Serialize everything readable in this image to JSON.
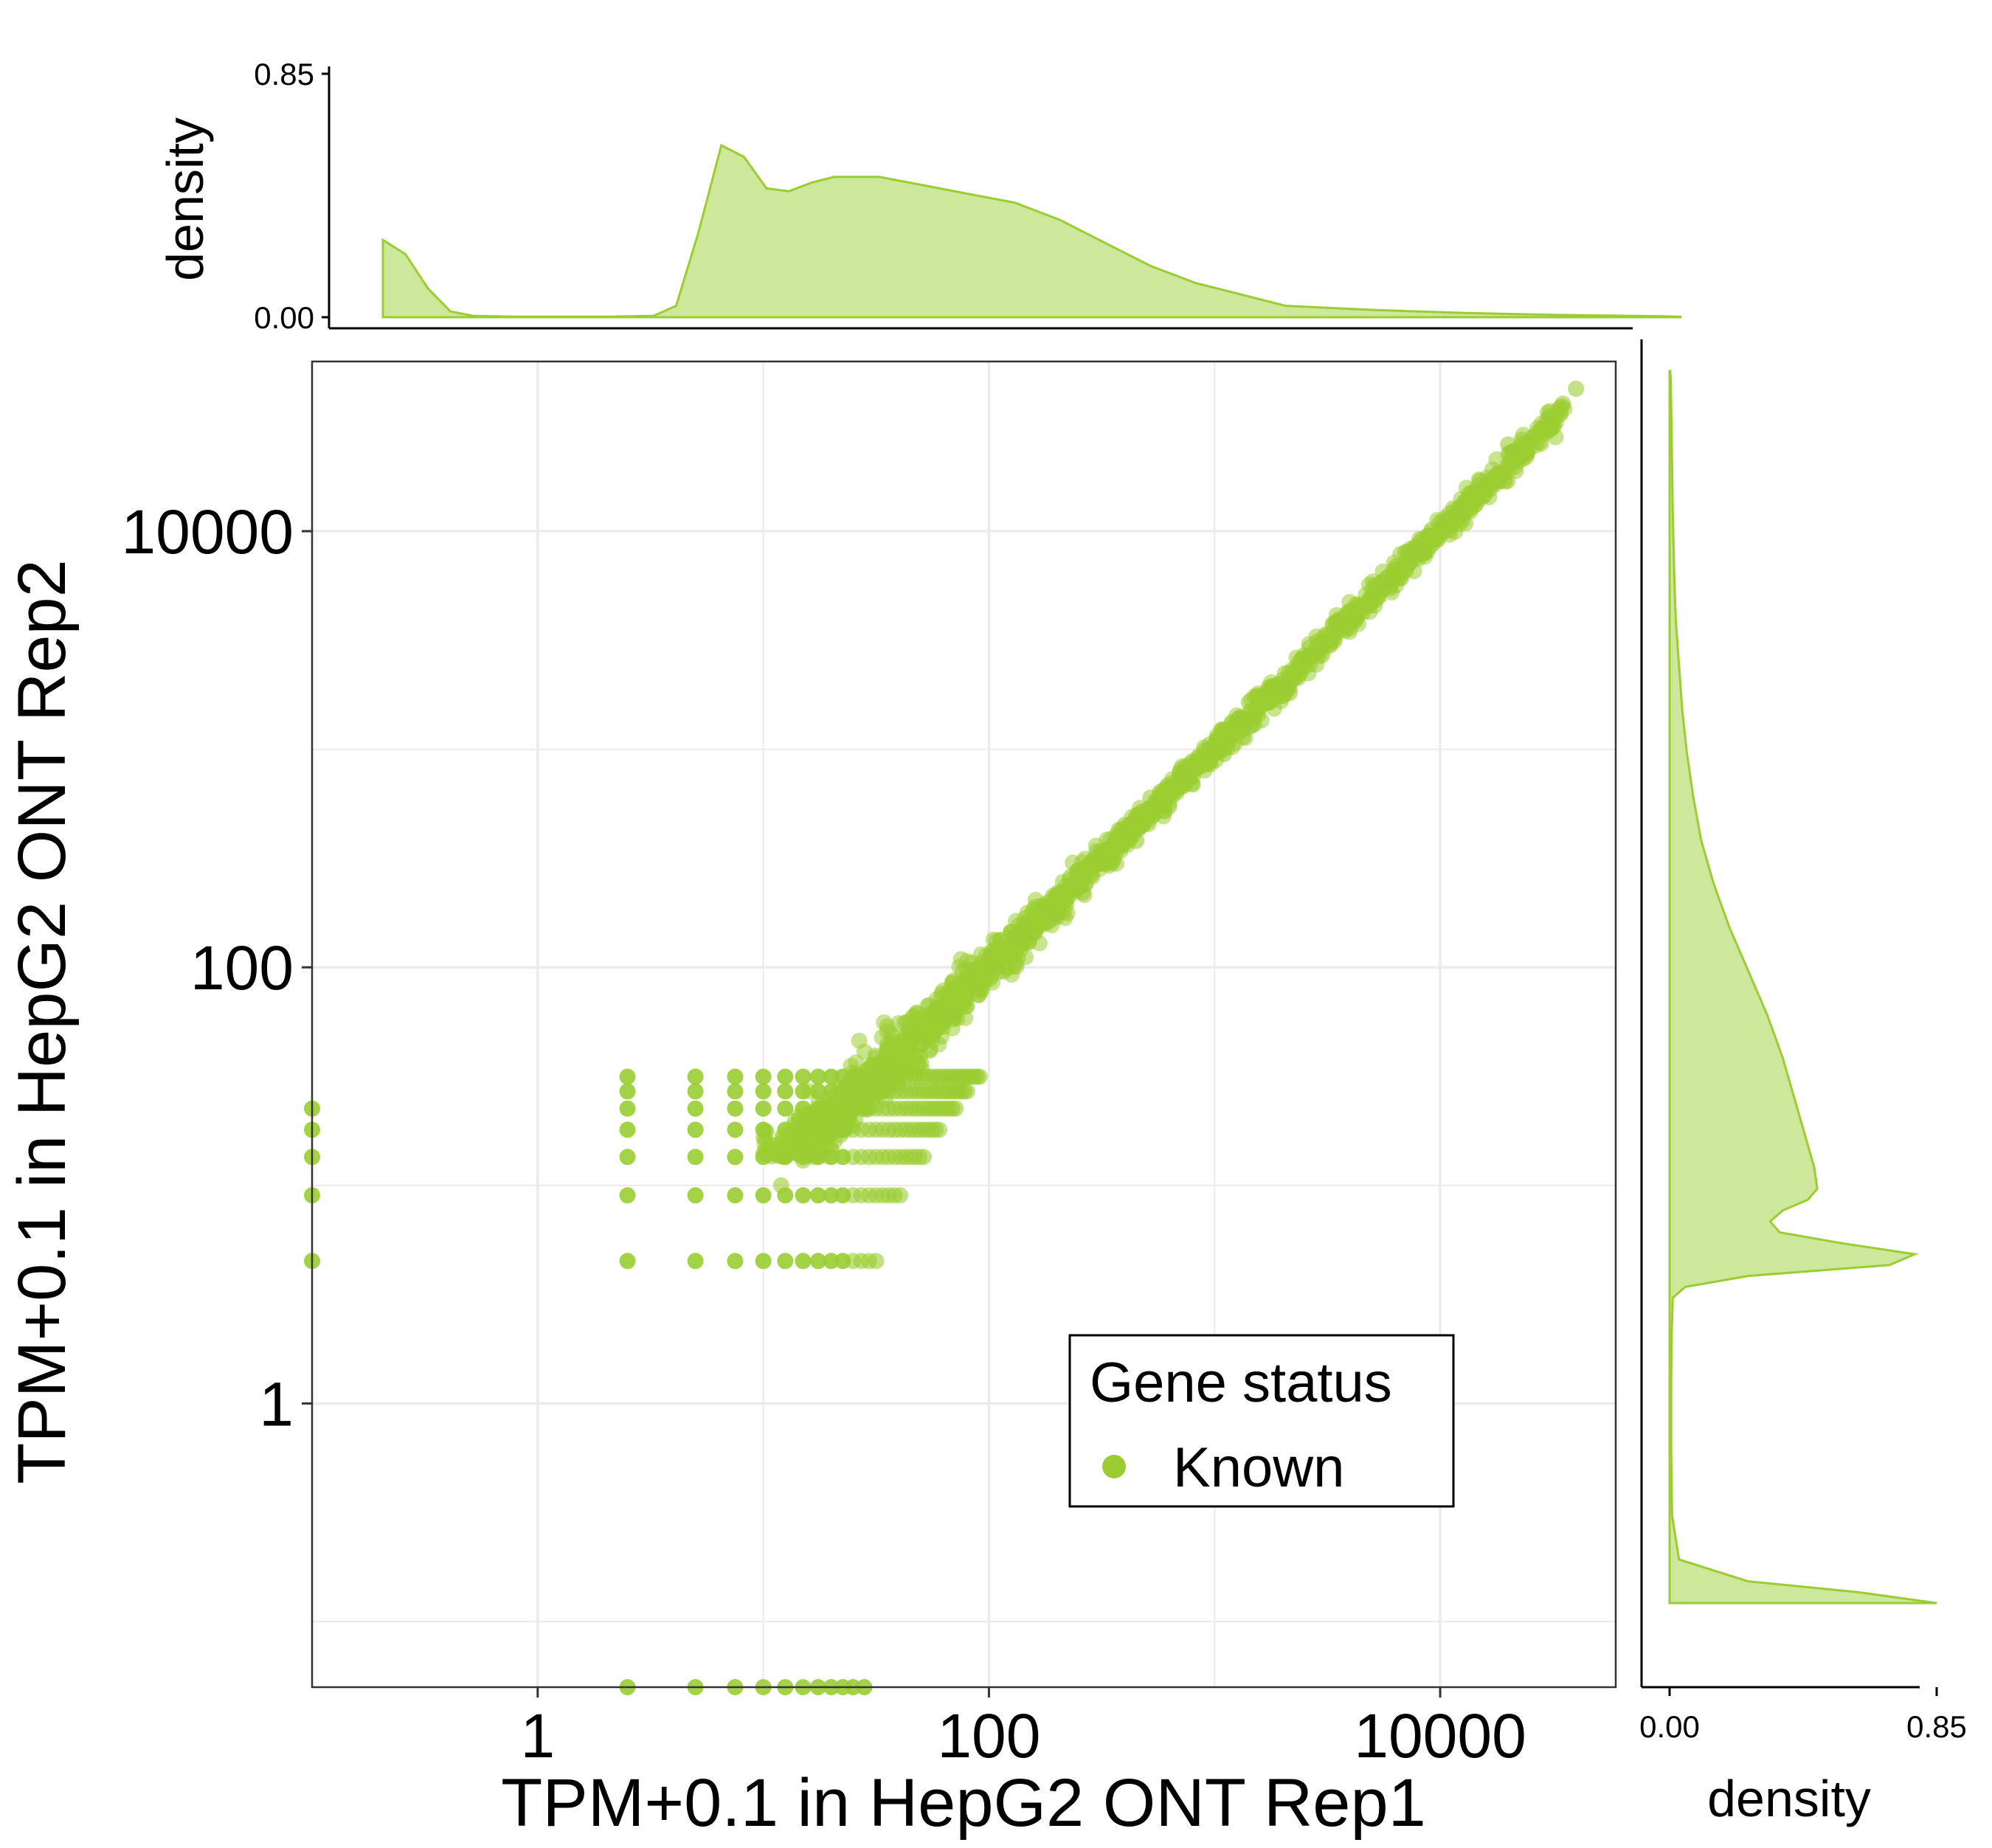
{
  "chart_data": [
    {
      "id": "main",
      "type": "scatter",
      "xlabel": "TPM+0.1 in HepG2 ONT Rep1",
      "ylabel": "TPM+0.1 in HepG2 ONT Rep2",
      "scale": "log10",
      "xlim": [
        0.1,
        60000
      ],
      "ylim": [
        0.05,
        60000
      ],
      "x_ticks": [
        {
          "value": 1,
          "label": "1"
        },
        {
          "value": 100,
          "label": "100"
        },
        {
          "value": 10000,
          "label": "10000"
        }
      ],
      "y_ticks": [
        {
          "value": 1,
          "label": "1"
        },
        {
          "value": 100,
          "label": "100"
        },
        {
          "value": 10000,
          "label": "10000"
        }
      ],
      "minor_gridlines": [
        0.1,
        10,
        1000
      ],
      "grid": true,
      "point_color": "#9ACD32",
      "legend": {
        "title": "Gene status",
        "entries": [
          "Known"
        ],
        "position": "bottom-right"
      },
      "series": [
        {
          "name": "Known",
          "note_points": "dense cloud along the diagonal from ~10 to ~30000 TPM; discrete stripes at low counts"
        }
      ],
      "stripe_levels": [
        0.1,
        4.5,
        9.0,
        13.5,
        18.0,
        22.5,
        27.0,
        31.5
      ],
      "stripe_x_start": [
        2.5,
        5.0,
        7.5,
        10.0,
        12.5,
        15.0,
        17.5,
        20.0,
        22.5
      ],
      "diag_points": [
        [
          12,
          10
        ],
        [
          15,
          13
        ],
        [
          18,
          17
        ],
        [
          22,
          19
        ],
        [
          25,
          28
        ],
        [
          30,
          26
        ],
        [
          35,
          38
        ],
        [
          40,
          33
        ],
        [
          45,
          50
        ],
        [
          50,
          44
        ],
        [
          60,
          65
        ],
        [
          70,
          58
        ],
        [
          80,
          90
        ],
        [
          90,
          75
        ],
        [
          100,
          110
        ],
        [
          110,
          95
        ],
        [
          130,
          140
        ],
        [
          150,
          130
        ],
        [
          170,
          190
        ],
        [
          200,
          170
        ],
        [
          230,
          260
        ],
        [
          260,
          220
        ],
        [
          300,
          340
        ],
        [
          350,
          300
        ],
        [
          400,
          450
        ],
        [
          450,
          380
        ],
        [
          520,
          600
        ],
        [
          600,
          520
        ],
        [
          700,
          780
        ],
        [
          800,
          690
        ],
        [
          950,
          1050
        ],
        [
          1100,
          950
        ],
        [
          1300,
          1400
        ],
        [
          1500,
          1300
        ],
        [
          1800,
          1950
        ],
        [
          2100,
          1900
        ],
        [
          2500,
          2700
        ],
        [
          3000,
          2700
        ],
        [
          3500,
          3800
        ],
        [
          4200,
          3900
        ],
        [
          5000,
          5400
        ],
        [
          6000,
          5600
        ],
        [
          7000,
          8000
        ],
        [
          8500,
          8000
        ],
        [
          10000,
          11000
        ],
        [
          12000,
          12500
        ],
        [
          15000,
          17000
        ],
        [
          20000,
          25000
        ],
        [
          30000,
          35000
        ],
        [
          40000,
          45000
        ]
      ]
    },
    {
      "id": "top-density",
      "type": "area",
      "ylabel": "density",
      "ylim": [
        0,
        0.85
      ],
      "y_ticks": [
        {
          "value": 0,
          "label": "0.00"
        },
        {
          "value": 0.85,
          "label": "0.85"
        }
      ],
      "x_log10": [
        -1.0,
        -0.9,
        -0.8,
        -0.7,
        -0.6,
        -0.5,
        -0.4,
        -0.2,
        0.0,
        0.2,
        0.3,
        0.4,
        0.5,
        0.6,
        0.7,
        0.8,
        0.9,
        1.0,
        1.2,
        1.4,
        1.6,
        1.8,
        2.0,
        2.2,
        2.4,
        2.6,
        2.8,
        3.0,
        3.4,
        3.8,
        4.2,
        4.6,
        4.75
      ],
      "values": [
        0.27,
        0.22,
        0.1,
        0.02,
        0.005,
        0.003,
        0.002,
        0.002,
        0.002,
        0.005,
        0.04,
        0.3,
        0.6,
        0.56,
        0.45,
        0.44,
        0.47,
        0.49,
        0.49,
        0.46,
        0.43,
        0.4,
        0.34,
        0.26,
        0.18,
        0.12,
        0.08,
        0.04,
        0.025,
        0.015,
        0.008,
        0.004,
        0.002
      ],
      "fill": "#CDE89A",
      "stroke": "#9ACD32"
    },
    {
      "id": "right-density",
      "type": "area",
      "xlabel": "density",
      "xlim": [
        0,
        0.85
      ],
      "x_ticks": [
        {
          "value": 0,
          "label": "0.00"
        },
        {
          "value": 0.85,
          "label": "0.85"
        }
      ],
      "y_log10": [
        -1.0,
        -0.95,
        -0.9,
        -0.8,
        -0.6,
        -0.3,
        0.0,
        0.2,
        0.4,
        0.45,
        0.5,
        0.55,
        0.6,
        0.65,
        0.7,
        0.75,
        0.8,
        0.85,
        0.9,
        1.0,
        1.1,
        1.2,
        1.3,
        1.5,
        1.7,
        1.9,
        2.1,
        2.3,
        2.5,
        2.7,
        2.9,
        3.1,
        3.3,
        3.5,
        3.7,
        4.0,
        4.3,
        4.6,
        4.65
      ],
      "values": [
        0.85,
        0.6,
        0.25,
        0.03,
        0.008,
        0.005,
        0.005,
        0.006,
        0.01,
        0.05,
        0.25,
        0.7,
        0.78,
        0.55,
        0.35,
        0.32,
        0.36,
        0.44,
        0.47,
        0.46,
        0.44,
        0.42,
        0.4,
        0.36,
        0.31,
        0.25,
        0.19,
        0.14,
        0.1,
        0.075,
        0.055,
        0.04,
        0.03,
        0.02,
        0.015,
        0.01,
        0.007,
        0.004,
        0.002
      ],
      "fill": "#CDE89A",
      "stroke": "#9ACD32"
    }
  ]
}
